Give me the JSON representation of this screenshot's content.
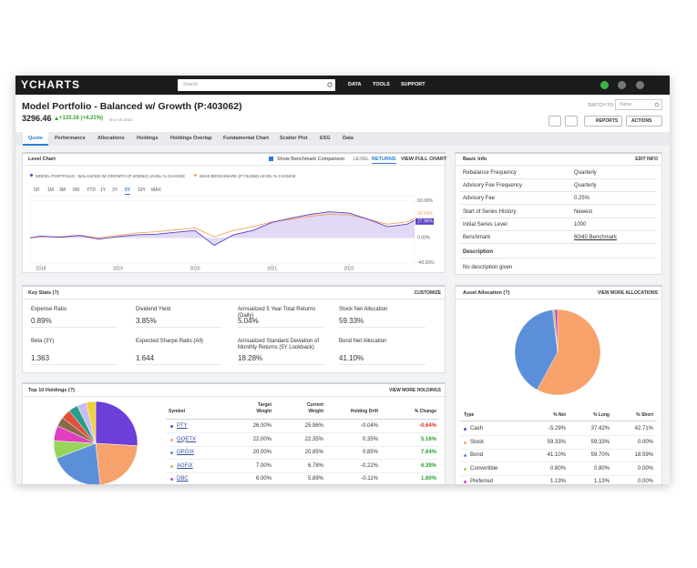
{
  "nav": {
    "logo": "YCHARTS",
    "search": "Search",
    "links": [
      "DATA",
      "TOOLS",
      "SUPPORT"
    ]
  },
  "header": {
    "title": "Model Portfolio - Balanced w/ Growth (P:403062)",
    "price": "3296.46",
    "change": "+133.16 (+4.21%)",
    "date": "Nov 15 2022",
    "switch_label": "SWITCH TO:",
    "switch_input": "Name",
    "buttons": [
      "REPORTS",
      "ACTIONS"
    ]
  },
  "tabs": {
    "items": [
      "Quote",
      "Performance",
      "Allocations",
      "Holdings",
      "Holdings Overlap",
      "Fundamental Chart",
      "Scatter Plot",
      "ESG",
      "Data"
    ],
    "active": 0
  },
  "level_chart": {
    "title": "Level Chart",
    "toggle": "Show Benchmark Comparison",
    "modes": [
      "LEVEL",
      "RETURNS"
    ],
    "active_mode": 1,
    "link": "VIEW FULL CHART",
    "ranges": [
      "5D",
      "1M",
      "3M",
      "6M",
      "YTD",
      "1Y",
      "3Y",
      "5Y",
      "10Y",
      "MAX"
    ],
    "active_range": 7,
    "chart": {
      "type": "line",
      "x": [
        2017.86,
        2018,
        2018.25,
        2018.5,
        2018.75,
        2019,
        2019.25,
        2019.5,
        2019.75,
        2020,
        2020.25,
        2020.5,
        2020.75,
        2021,
        2021.25,
        2021.5,
        2021.75,
        2022,
        2022.25,
        2022.5,
        2022.75,
        2022.85
      ],
      "series": [
        {
          "name": "MODEL PORTFOLIO - BALANCED W/ GROWTH (P:403062) LEVEL % CHANGE",
          "color": "#5b3fc4",
          "values": [
            0,
            3,
            1,
            4,
            -2,
            2,
            5,
            6,
            9,
            12,
            -12,
            5,
            12,
            25,
            32,
            38,
            42,
            40,
            30,
            18,
            22,
            27.96
          ],
          "end_label": "27.96%"
        },
        {
          "name": "60/40 BENCHMARK (P:734366) LEVEL % CHANGE",
          "color": "#f5a25d",
          "values": [
            0,
            2,
            2,
            4,
            0,
            4,
            8,
            10,
            13,
            16,
            2,
            12,
            18,
            26,
            30,
            35,
            38,
            37,
            30,
            22,
            26,
            30.54
          ],
          "end_label": "30.54%"
        }
      ],
      "xlim": [
        2017.86,
        2022.85
      ],
      "xticks": [
        2018,
        2019,
        2020,
        2021,
        2022
      ],
      "ylim": [
        -42,
        68
      ],
      "yticks": [
        {
          "value": 60,
          "label": "60.00%"
        },
        {
          "value": 0,
          "label": "0.00%"
        },
        {
          "value": -40,
          "label": "-40.00%"
        }
      ]
    }
  },
  "basic_info": {
    "title": "Basic Info",
    "link": "EDIT INFO",
    "rows": [
      [
        "Rebalance Frequency",
        "Quarterly"
      ],
      [
        "Advisory Fee Frequency",
        "Quarterly"
      ],
      [
        "Advisory Fee",
        "0.25%"
      ],
      [
        "Start of Series History",
        "Newest"
      ],
      [
        "Initial Series Level",
        "1000"
      ],
      [
        "Benchmark",
        "60/40 Benchmark"
      ]
    ],
    "description_label": "Description",
    "description": "No description given"
  },
  "key_stats": {
    "title": "Key Stats (?)",
    "link": "CUSTOMIZE",
    "items": [
      {
        "label": "Expense Ratio",
        "value": "0.89%"
      },
      {
        "label": "Dividend Yield",
        "value": "3.85%"
      },
      {
        "label": "Annualized 5 Year Total Returns (Daily)",
        "value": "5.04%"
      },
      {
        "label": "Stock Net Allocation",
        "value": "59.33%"
      },
      {
        "label": "Beta (3Y)",
        "value": "1.363"
      },
      {
        "label": "Expected Sharpe Ratio (All)",
        "value": "1.644"
      },
      {
        "label": "Annualized Standard Deviation of Monthly Returns (5Y Lookback)",
        "value": "18.28%"
      },
      {
        "label": "Bond Net Allocation",
        "value": "41.10%"
      }
    ]
  },
  "top_holdings": {
    "title": "Top 10 Holdings (?)",
    "link": "VIEW MORE HOLDINGS",
    "columns": [
      "Symbol",
      "Target Weight",
      "Current Weight",
      "Holding Drift",
      "% Change"
    ],
    "rows": [
      {
        "symbol": "PTY",
        "color": "#6b3fd8",
        "target": "26.00%",
        "current": 25.96,
        "current_label": "25.96%",
        "drift": "-0.04%",
        "change": "-0.64%"
      },
      {
        "symbol": "GQETX",
        "color": "#f7a26b",
        "target": "22.00%",
        "current": 22.35,
        "current_label": "22.35%",
        "drift": "0.35%",
        "change": "5.16%"
      },
      {
        "symbol": "OPGIX",
        "color": "#5b8fd9",
        "target": "20.00%",
        "current": 20.85,
        "current_label": "20.85%",
        "drift": "0.85%",
        "change": "7.94%"
      },
      {
        "symbol": "AGFiX",
        "color": "#96d45a",
        "target": "7.00%",
        "current": 6.78,
        "current_label": "6.78%",
        "drift": "-0.22%",
        "change": "6.39%"
      },
      {
        "symbol": "DBC",
        "color": "#e040c0",
        "target": "6.00%",
        "current": 5.89,
        "current_label": "5.89%",
        "drift": "-0.11%",
        "change": "1.60%"
      }
    ]
  },
  "asset_allocation": {
    "title": "Asset Allocation (?)",
    "link": "VIEW MORE ALLOCATIONS",
    "columns": [
      "Type",
      "% Net",
      "% Long",
      "% Short"
    ],
    "rows": [
      {
        "type": "Cash",
        "color": "#6b3fd8",
        "net": -5.29,
        "net_label": "-5.29%",
        "long": "37.42%",
        "short": "42.71%"
      },
      {
        "type": "Stock",
        "color": "#f7a26b",
        "net": 59.33,
        "net_label": "59.33%",
        "long": "59.33%",
        "short": "0.00%"
      },
      {
        "type": "Bond",
        "color": "#5b8fd9",
        "net": 41.1,
        "net_label": "41.10%",
        "long": "59.70%",
        "short": "18.59%"
      },
      {
        "type": "Convertible",
        "color": "#96d45a",
        "net": 0.8,
        "net_label": "0.80%",
        "long": "0.80%",
        "short": "0.00%"
      },
      {
        "type": "Preferred",
        "color": "#e040c0",
        "net": 1.13,
        "net_label": "1.13%",
        "long": "1.13%",
        "short": "0.00%"
      }
    ]
  }
}
